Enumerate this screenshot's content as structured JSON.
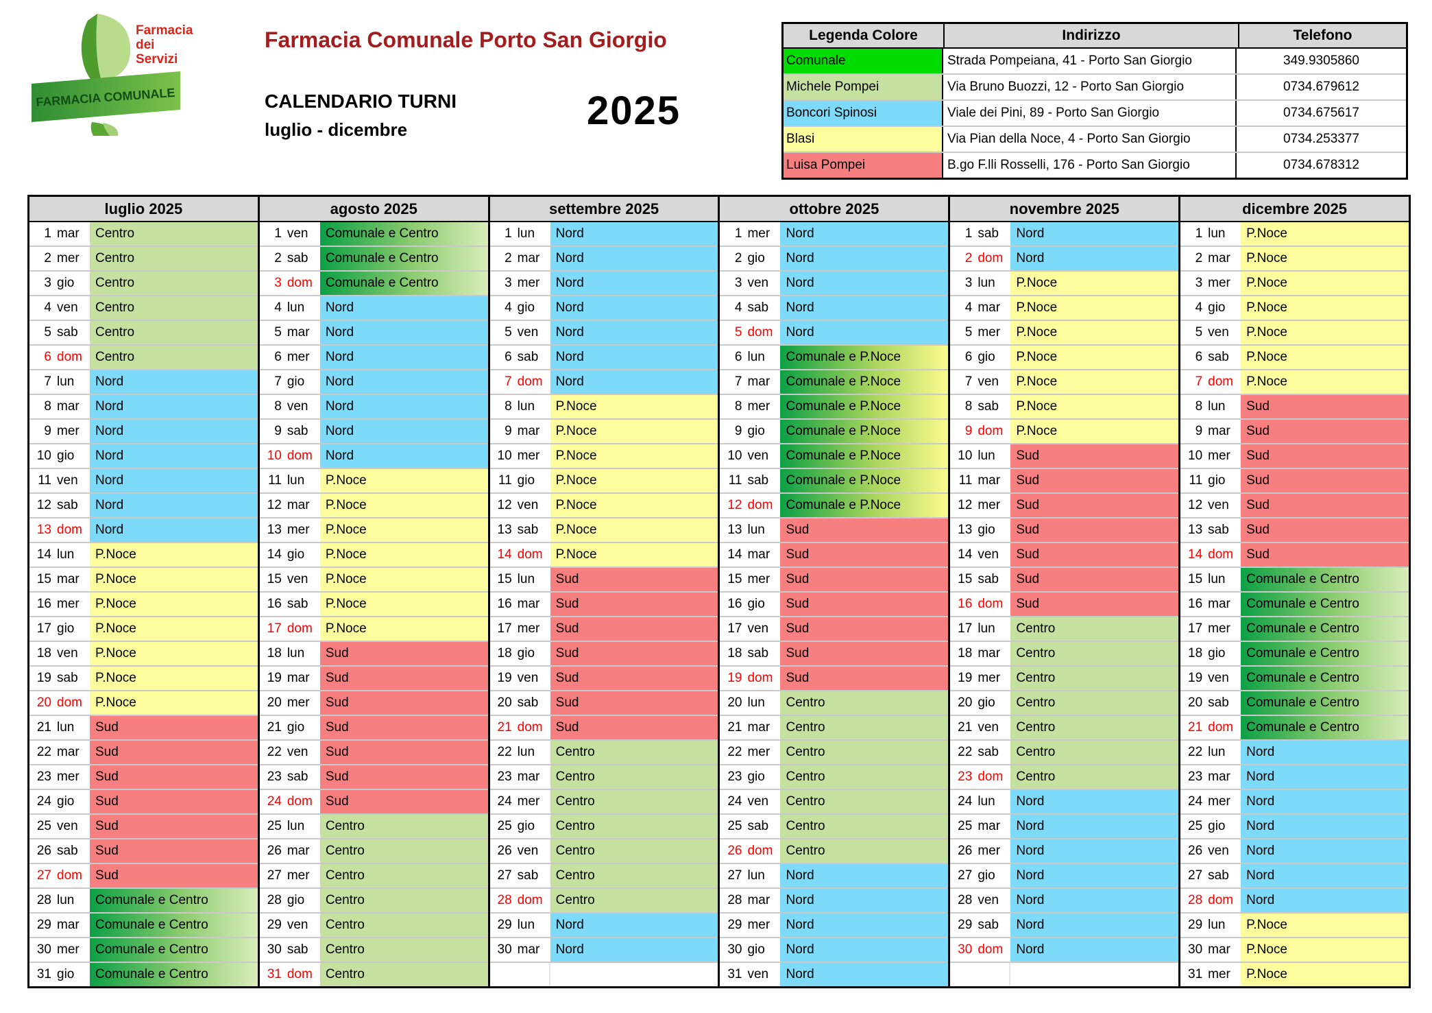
{
  "header": {
    "logo": {
      "line1": "Farmacia",
      "line2": "dei",
      "line3": "Servizi",
      "banner": "FARMACIA COMUNALE"
    },
    "title": "Farmacia Comunale Porto San Giorgio",
    "subtitle1": "CALENDARIO TURNI",
    "subtitle2": "luglio - dicembre",
    "year": "2025"
  },
  "legend": {
    "columns": [
      "Legenda Colore",
      "Indirizzo",
      "Telefono"
    ],
    "rows": [
      {
        "name": "Comunale",
        "color": "#00DB00",
        "address": "Strada Pompeiana, 41 - Porto San Giorgio",
        "phone": "349.9305860"
      },
      {
        "name": "Michele Pompei",
        "color": "#C6E0A0",
        "address": "Via Bruno Buozzi, 12 - Porto San Giorgio",
        "phone": "0734.679612"
      },
      {
        "name": "Boncori Spinosi",
        "color": "#7DDAF8",
        "address": "Viale dei Pini, 89 - Porto San Giorgio",
        "phone": "0734.675617"
      },
      {
        "name": "Blasi",
        "color": "#FDFD9E",
        "address": "Via Pian della Noce, 4 - Porto San Giorgio",
        "phone": "0734.253377"
      },
      {
        "name": "Luisa Pompei",
        "color": "#F87F7F",
        "address": "B.go F.lli Rosselli, 176 - Porto San Giorgio",
        "phone": "0734.678312"
      }
    ]
  },
  "duty_colors": {
    "Centro": "#C6E0A0",
    "Nord": "#7DDAF8",
    "P.Noce": "#FDFD9E",
    "Sud": "#F87F7F",
    "Comunale e Centro": "linear-gradient(90deg,#0DA046 0%,#8CCB70 55%,#D9EDBA 100%)",
    "Comunale e P.Noce": "linear-gradient(90deg,#0DA046 0%,#A8D45C 55%,#FAFA8E 100%)"
  },
  "sunday_color": "#FF0000",
  "rows_per_month": 31,
  "months": [
    {
      "label": "luglio 2025",
      "days": [
        [
          1,
          "mar",
          "Centro"
        ],
        [
          2,
          "mer",
          "Centro"
        ],
        [
          3,
          "gio",
          "Centro"
        ],
        [
          4,
          "ven",
          "Centro"
        ],
        [
          5,
          "sab",
          "Centro"
        ],
        [
          6,
          "dom",
          "Centro"
        ],
        [
          7,
          "lun",
          "Nord"
        ],
        [
          8,
          "mar",
          "Nord"
        ],
        [
          9,
          "mer",
          "Nord"
        ],
        [
          10,
          "gio",
          "Nord"
        ],
        [
          11,
          "ven",
          "Nord"
        ],
        [
          12,
          "sab",
          "Nord"
        ],
        [
          13,
          "dom",
          "Nord"
        ],
        [
          14,
          "lun",
          "P.Noce"
        ],
        [
          15,
          "mar",
          "P.Noce"
        ],
        [
          16,
          "mer",
          "P.Noce"
        ],
        [
          17,
          "gio",
          "P.Noce"
        ],
        [
          18,
          "ven",
          "P.Noce"
        ],
        [
          19,
          "sab",
          "P.Noce"
        ],
        [
          20,
          "dom",
          "P.Noce"
        ],
        [
          21,
          "lun",
          "Sud"
        ],
        [
          22,
          "mar",
          "Sud"
        ],
        [
          23,
          "mer",
          "Sud"
        ],
        [
          24,
          "gio",
          "Sud"
        ],
        [
          25,
          "ven",
          "Sud"
        ],
        [
          26,
          "sab",
          "Sud"
        ],
        [
          27,
          "dom",
          "Sud"
        ],
        [
          28,
          "lun",
          "Comunale e Centro"
        ],
        [
          29,
          "mar",
          "Comunale e Centro"
        ],
        [
          30,
          "mer",
          "Comunale e Centro"
        ],
        [
          31,
          "gio",
          "Comunale e Centro"
        ]
      ]
    },
    {
      "label": "agosto 2025",
      "days": [
        [
          1,
          "ven",
          "Comunale e Centro"
        ],
        [
          2,
          "sab",
          "Comunale e Centro"
        ],
        [
          3,
          "dom",
          "Comunale e Centro"
        ],
        [
          4,
          "lun",
          "Nord"
        ],
        [
          5,
          "mar",
          "Nord"
        ],
        [
          6,
          "mer",
          "Nord"
        ],
        [
          7,
          "gio",
          "Nord"
        ],
        [
          8,
          "ven",
          "Nord"
        ],
        [
          9,
          "sab",
          "Nord"
        ],
        [
          10,
          "dom",
          "Nord"
        ],
        [
          11,
          "lun",
          "P.Noce"
        ],
        [
          12,
          "mar",
          "P.Noce"
        ],
        [
          13,
          "mer",
          "P.Noce"
        ],
        [
          14,
          "gio",
          "P.Noce"
        ],
        [
          15,
          "ven",
          "P.Noce"
        ],
        [
          16,
          "sab",
          "P.Noce"
        ],
        [
          17,
          "dom",
          "P.Noce"
        ],
        [
          18,
          "lun",
          "Sud"
        ],
        [
          19,
          "mar",
          "Sud"
        ],
        [
          20,
          "mer",
          "Sud"
        ],
        [
          21,
          "gio",
          "Sud"
        ],
        [
          22,
          "ven",
          "Sud"
        ],
        [
          23,
          "sab",
          "Sud"
        ],
        [
          24,
          "dom",
          "Sud"
        ],
        [
          25,
          "lun",
          "Centro"
        ],
        [
          26,
          "mar",
          "Centro"
        ],
        [
          27,
          "mer",
          "Centro"
        ],
        [
          28,
          "gio",
          "Centro"
        ],
        [
          29,
          "ven",
          "Centro"
        ],
        [
          30,
          "sab",
          "Centro"
        ],
        [
          31,
          "dom",
          "Centro"
        ]
      ]
    },
    {
      "label": "settembre 2025",
      "days": [
        [
          1,
          "lun",
          "Nord"
        ],
        [
          2,
          "mar",
          "Nord"
        ],
        [
          3,
          "mer",
          "Nord"
        ],
        [
          4,
          "gio",
          "Nord"
        ],
        [
          5,
          "ven",
          "Nord"
        ],
        [
          6,
          "sab",
          "Nord"
        ],
        [
          7,
          "dom",
          "Nord"
        ],
        [
          8,
          "lun",
          "P.Noce"
        ],
        [
          9,
          "mar",
          "P.Noce"
        ],
        [
          10,
          "mer",
          "P.Noce"
        ],
        [
          11,
          "gio",
          "P.Noce"
        ],
        [
          12,
          "ven",
          "P.Noce"
        ],
        [
          13,
          "sab",
          "P.Noce"
        ],
        [
          14,
          "dom",
          "P.Noce"
        ],
        [
          15,
          "lun",
          "Sud"
        ],
        [
          16,
          "mar",
          "Sud"
        ],
        [
          17,
          "mer",
          "Sud"
        ],
        [
          18,
          "gio",
          "Sud"
        ],
        [
          19,
          "ven",
          "Sud"
        ],
        [
          20,
          "sab",
          "Sud"
        ],
        [
          21,
          "dom",
          "Sud"
        ],
        [
          22,
          "lun",
          "Centro"
        ],
        [
          23,
          "mar",
          "Centro"
        ],
        [
          24,
          "mer",
          "Centro"
        ],
        [
          25,
          "gio",
          "Centro"
        ],
        [
          26,
          "ven",
          "Centro"
        ],
        [
          27,
          "sab",
          "Centro"
        ],
        [
          28,
          "dom",
          "Centro"
        ],
        [
          29,
          "lun",
          "Nord"
        ],
        [
          30,
          "mar",
          "Nord"
        ]
      ]
    },
    {
      "label": "ottobre 2025",
      "days": [
        [
          1,
          "mer",
          "Nord"
        ],
        [
          2,
          "gio",
          "Nord"
        ],
        [
          3,
          "ven",
          "Nord"
        ],
        [
          4,
          "sab",
          "Nord"
        ],
        [
          5,
          "dom",
          "Nord"
        ],
        [
          6,
          "lun",
          "Comunale e P.Noce"
        ],
        [
          7,
          "mar",
          "Comunale e P.Noce"
        ],
        [
          8,
          "mer",
          "Comunale e P.Noce"
        ],
        [
          9,
          "gio",
          "Comunale e P.Noce"
        ],
        [
          10,
          "ven",
          "Comunale e P.Noce"
        ],
        [
          11,
          "sab",
          "Comunale e P.Noce"
        ],
        [
          12,
          "dom",
          "Comunale e P.Noce"
        ],
        [
          13,
          "lun",
          "Sud"
        ],
        [
          14,
          "mar",
          "Sud"
        ],
        [
          15,
          "mer",
          "Sud"
        ],
        [
          16,
          "gio",
          "Sud"
        ],
        [
          17,
          "ven",
          "Sud"
        ],
        [
          18,
          "sab",
          "Sud"
        ],
        [
          19,
          "dom",
          "Sud"
        ],
        [
          20,
          "lun",
          "Centro"
        ],
        [
          21,
          "mar",
          "Centro"
        ],
        [
          22,
          "mer",
          "Centro"
        ],
        [
          23,
          "gio",
          "Centro"
        ],
        [
          24,
          "ven",
          "Centro"
        ],
        [
          25,
          "sab",
          "Centro"
        ],
        [
          26,
          "dom",
          "Centro"
        ],
        [
          27,
          "lun",
          "Nord"
        ],
        [
          28,
          "mar",
          "Nord"
        ],
        [
          29,
          "mer",
          "Nord"
        ],
        [
          30,
          "gio",
          "Nord"
        ],
        [
          31,
          "ven",
          "Nord"
        ]
      ]
    },
    {
      "label": "novembre 2025",
      "days": [
        [
          1,
          "sab",
          "Nord"
        ],
        [
          2,
          "dom",
          "Nord"
        ],
        [
          3,
          "lun",
          "P.Noce"
        ],
        [
          4,
          "mar",
          "P.Noce"
        ],
        [
          5,
          "mer",
          "P.Noce"
        ],
        [
          6,
          "gio",
          "P.Noce"
        ],
        [
          7,
          "ven",
          "P.Noce"
        ],
        [
          8,
          "sab",
          "P.Noce"
        ],
        [
          9,
          "dom",
          "P.Noce"
        ],
        [
          10,
          "lun",
          "Sud"
        ],
        [
          11,
          "mar",
          "Sud"
        ],
        [
          12,
          "mer",
          "Sud"
        ],
        [
          13,
          "gio",
          "Sud"
        ],
        [
          14,
          "ven",
          "Sud"
        ],
        [
          15,
          "sab",
          "Sud"
        ],
        [
          16,
          "dom",
          "Sud"
        ],
        [
          17,
          "lun",
          "Centro"
        ],
        [
          18,
          "mar",
          "Centro"
        ],
        [
          19,
          "mer",
          "Centro"
        ],
        [
          20,
          "gio",
          "Centro"
        ],
        [
          21,
          "ven",
          "Centro"
        ],
        [
          22,
          "sab",
          "Centro"
        ],
        [
          23,
          "dom",
          "Centro"
        ],
        [
          24,
          "lun",
          "Nord"
        ],
        [
          25,
          "mar",
          "Nord"
        ],
        [
          26,
          "mer",
          "Nord"
        ],
        [
          27,
          "gio",
          "Nord"
        ],
        [
          28,
          "ven",
          "Nord"
        ],
        [
          29,
          "sab",
          "Nord"
        ],
        [
          30,
          "dom",
          "Nord"
        ]
      ]
    },
    {
      "label": "dicembre 2025",
      "days": [
        [
          1,
          "lun",
          "P.Noce"
        ],
        [
          2,
          "mar",
          "P.Noce"
        ],
        [
          3,
          "mer",
          "P.Noce"
        ],
        [
          4,
          "gio",
          "P.Noce"
        ],
        [
          5,
          "ven",
          "P.Noce"
        ],
        [
          6,
          "sab",
          "P.Noce"
        ],
        [
          7,
          "dom",
          "P.Noce"
        ],
        [
          8,
          "lun",
          "Sud"
        ],
        [
          9,
          "mar",
          "Sud"
        ],
        [
          10,
          "mer",
          "Sud"
        ],
        [
          11,
          "gio",
          "Sud"
        ],
        [
          12,
          "ven",
          "Sud"
        ],
        [
          13,
          "sab",
          "Sud"
        ],
        [
          14,
          "dom",
          "Sud"
        ],
        [
          15,
          "lun",
          "Comunale e Centro"
        ],
        [
          16,
          "mar",
          "Comunale e Centro"
        ],
        [
          17,
          "mer",
          "Comunale e Centro"
        ],
        [
          18,
          "gio",
          "Comunale e Centro"
        ],
        [
          19,
          "ven",
          "Comunale e Centro"
        ],
        [
          20,
          "sab",
          "Comunale e Centro"
        ],
        [
          21,
          "dom",
          "Comunale e Centro"
        ],
        [
          22,
          "lun",
          "Nord"
        ],
        [
          23,
          "mar",
          "Nord"
        ],
        [
          24,
          "mer",
          "Nord"
        ],
        [
          25,
          "gio",
          "Nord"
        ],
        [
          26,
          "ven",
          "Nord"
        ],
        [
          27,
          "sab",
          "Nord"
        ],
        [
          28,
          "dom",
          "Nord"
        ],
        [
          29,
          "lun",
          "P.Noce"
        ],
        [
          30,
          "mar",
          "P.Noce"
        ],
        [
          31,
          "mer",
          "P.Noce"
        ]
      ]
    }
  ]
}
